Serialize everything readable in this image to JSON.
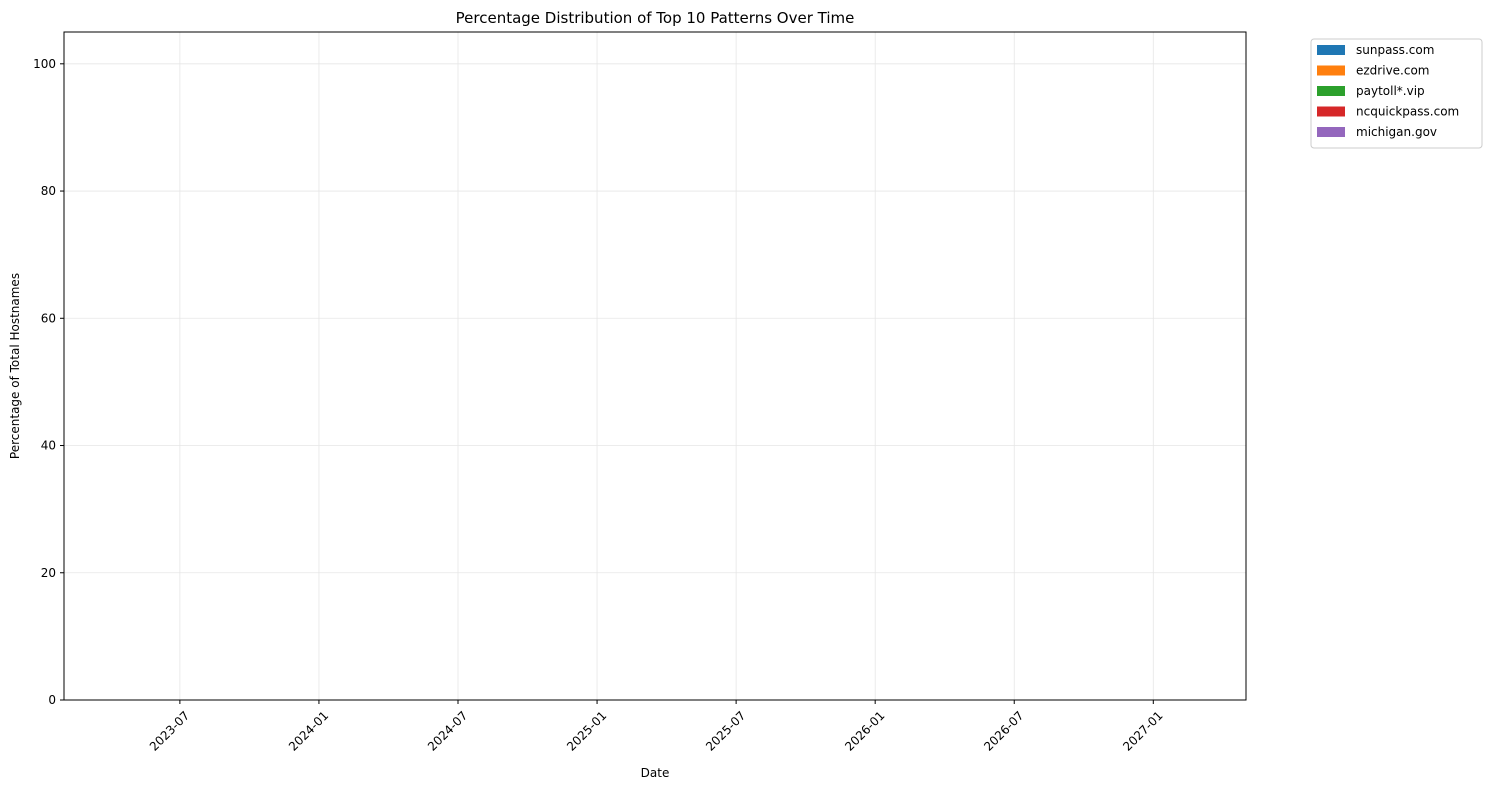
{
  "chart_data": {
    "type": "area",
    "title": "Percentage Distribution of Top 10 Patterns Over Time",
    "xlabel": "Date",
    "ylabel": "Percentage of Total Hostnames",
    "x_ticks": [
      "2023-07",
      "2024-01",
      "2024-07",
      "2025-01",
      "2025-07",
      "2026-01",
      "2026-07",
      "2027-01"
    ],
    "xlim": [
      "2023-02",
      "2027-05"
    ],
    "ylim": [
      0,
      105
    ],
    "y_ticks": [
      0,
      20,
      40,
      60,
      80,
      100
    ],
    "grid": true,
    "legend_position": "outside-top-right",
    "series": [
      {
        "name": "sunpass.com",
        "color": "#1f77b4",
        "values": []
      },
      {
        "name": "ezdrive.com",
        "color": "#ff7f0e",
        "values": []
      },
      {
        "name": "paytoll*.vip",
        "color": "#2ca02c",
        "values": []
      },
      {
        "name": "ncquickpass.com",
        "color": "#d62728",
        "values": []
      },
      {
        "name": "michigan.gov",
        "color": "#9467bd",
        "values": []
      }
    ]
  }
}
